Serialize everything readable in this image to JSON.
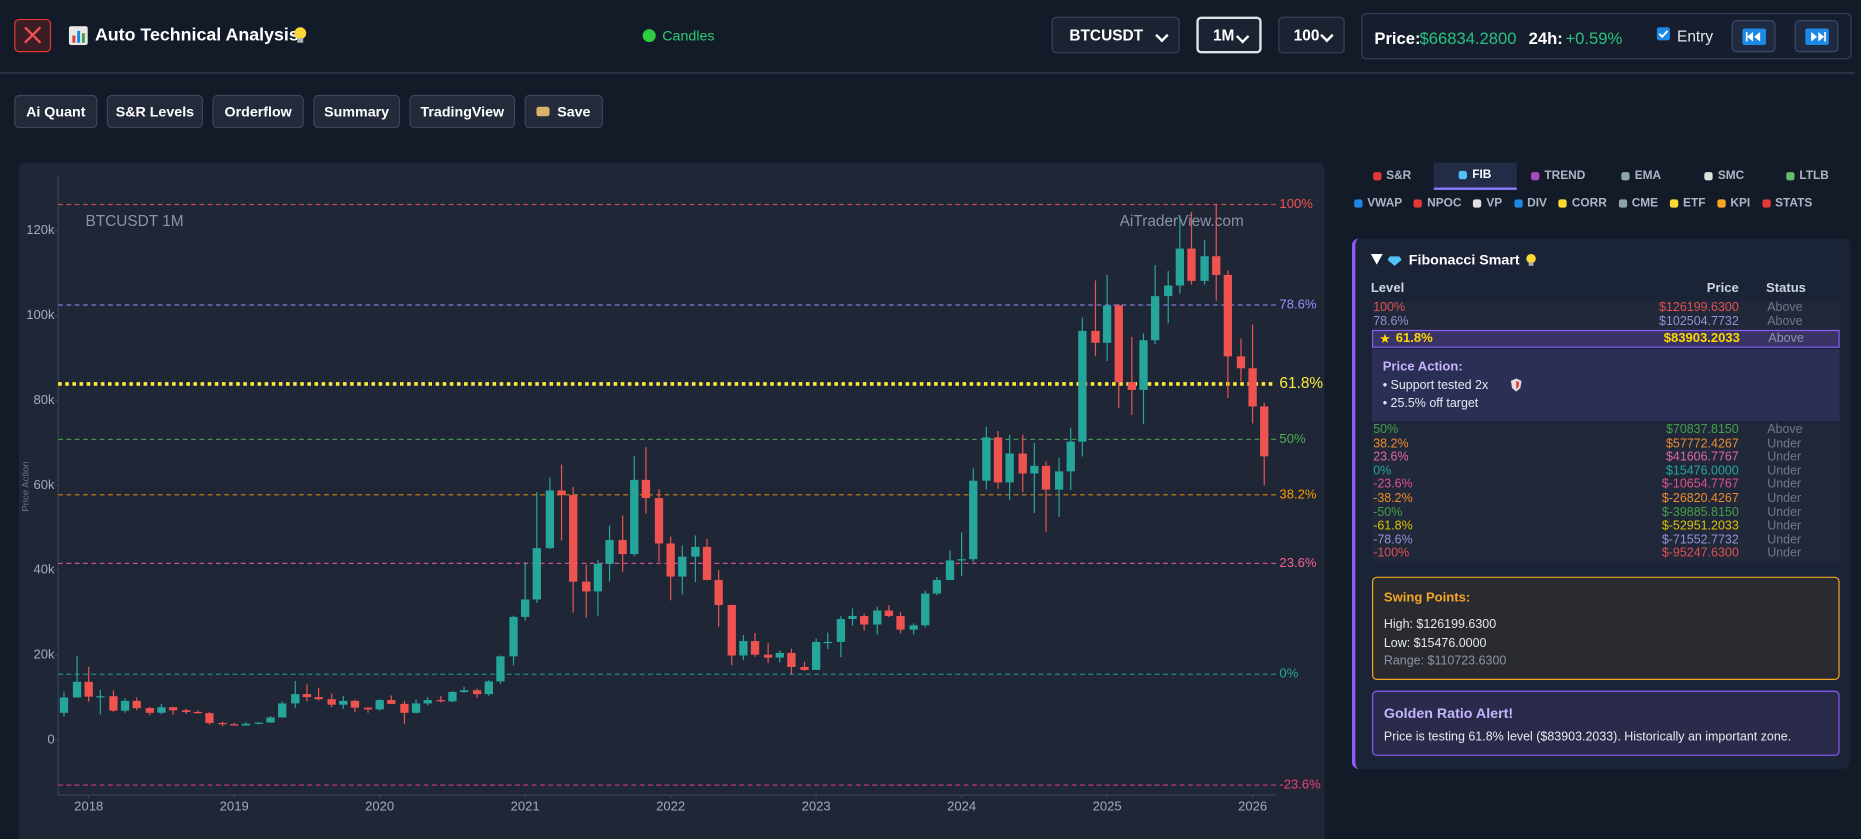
{
  "header": {
    "title": "Auto Technical Analysis",
    "status": "Candles",
    "symbol": "BTCUSDT",
    "interval": "1M",
    "limit": "100",
    "price_label": "Price:",
    "price": "$66834.2800",
    "change_label": "24h:",
    "change": "+0.59%",
    "entry": "Entry"
  },
  "toolbar": [
    "Ai Quant",
    "S&R Levels",
    "Orderflow",
    "Summary",
    "TradingView",
    "Save"
  ],
  "chart_data": {
    "type": "candlestick",
    "watermark_left": "BTCUSDT 1M",
    "watermark_right": "AiTraderView.com",
    "y_label": "Price Action",
    "up_color": "#26a69a",
    "down_color": "#ef5350",
    "xlim": [
      2017.79,
      2026.16
    ],
    "xticks": [
      2018,
      2019,
      2020,
      2021,
      2022,
      2023,
      2024,
      2025,
      2026
    ],
    "ylim": [
      -13000,
      133000
    ],
    "yticks": [
      {
        "value": 0,
        "label": "0"
      },
      {
        "value": 20000,
        "label": "20k"
      },
      {
        "value": 40000,
        "label": "40k"
      },
      {
        "value": 60000,
        "label": "60k"
      },
      {
        "value": 80000,
        "label": "80k"
      },
      {
        "value": 100000,
        "label": "100k"
      },
      {
        "value": 120000,
        "label": "120k"
      }
    ],
    "fib_levels": [
      {
        "label": "100%",
        "value": 126199.63,
        "color": "#ef5350",
        "line_width": 1
      },
      {
        "label": "78.6%",
        "value": 102504.7732,
        "color": "#9d8cff",
        "line_width": 1
      },
      {
        "label": "61.8%",
        "value": 83903.2033,
        "color": "#ffeb3b",
        "line_width": 3
      },
      {
        "label": "50%",
        "value": 70837.815,
        "color": "#4caf50",
        "line_width": 1
      },
      {
        "label": "38.2%",
        "value": 57772.4267,
        "color": "#ff9800",
        "line_width": 1
      },
      {
        "label": "23.6%",
        "value": 41606.7767,
        "color": "#f06292",
        "line_width": 1
      },
      {
        "label": "0%",
        "value": 15476.0,
        "color": "#26a69a",
        "line_width": 1
      },
      {
        "label": "-23.6%",
        "value": -10654.7767,
        "color": "#ec407a",
        "line_width": 1
      }
    ],
    "x": [
      2017.83,
      2017.92,
      2018,
      2018.08,
      2018.17,
      2018.25,
      2018.33,
      2018.42,
      2018.5,
      2018.58,
      2018.67,
      2018.75,
      2018.83,
      2018.92,
      2019,
      2019.08,
      2019.17,
      2019.25,
      2019.33,
      2019.42,
      2019.5,
      2019.58,
      2019.67,
      2019.75,
      2019.83,
      2019.92,
      2020,
      2020.08,
      2020.17,
      2020.25,
      2020.33,
      2020.42,
      2020.5,
      2020.58,
      2020.67,
      2020.75,
      2020.83,
      2020.92,
      2021,
      2021.08,
      2021.17,
      2021.25,
      2021.33,
      2021.42,
      2021.5,
      2021.58,
      2021.67,
      2021.75,
      2021.83,
      2021.92,
      2022,
      2022.08,
      2022.17,
      2022.25,
      2022.33,
      2022.42,
      2022.5,
      2022.58,
      2022.67,
      2022.75,
      2022.83,
      2022.92,
      2023,
      2023.08,
      2023.17,
      2023.25,
      2023.33,
      2023.42,
      2023.5,
      2023.58,
      2023.67,
      2023.75,
      2023.83,
      2023.92,
      2024,
      2024.08,
      2024.17,
      2024.25,
      2024.33,
      2024.42,
      2024.5,
      2024.58,
      2024.67,
      2024.75,
      2024.83,
      2024.92,
      2025,
      2025.08,
      2025.17,
      2025.25,
      2025.33,
      2025.42,
      2025.5,
      2025.58,
      2025.67,
      2025.75,
      2025.83,
      2025.92,
      2026,
      2026.08
    ],
    "open": [
      6400,
      10000,
      13700,
      10200,
      10300,
      6900,
      9200,
      7500,
      6400,
      7700,
      7000,
      6600,
      6300,
      4000,
      3700,
      3400,
      3800,
      4100,
      5300,
      8600,
      10800,
      10100,
      9600,
      8300,
      9200,
      7600,
      7200,
      9400,
      8500,
      6400,
      8600,
      9400,
      9100,
      11300,
      11700,
      10800,
      13800,
      19700,
      29000,
      33100,
      45200,
      58800,
      57700,
      37300,
      35000,
      41500,
      47100,
      43800,
      61300,
      57000,
      46300,
      38500,
      43200,
      45500,
      37700,
      31800,
      19900,
      23300,
      20100,
      19400,
      20500,
      17200,
      16500,
      23100,
      23100,
      28500,
      29200,
      27200,
      30500,
      29200,
      26000,
      27000,
      34500,
      37700,
      42300,
      42600,
      61100,
      71300,
      60700,
      67500,
      62800,
      64600,
      59000,
      63300,
      70300,
      96400,
      93600,
      102400,
      84300,
      82500,
      94200,
      104600,
      107100,
      115800,
      108200,
      114000,
      109600,
      90400,
      87600,
      78600
    ],
    "high": [
      11400,
      19800,
      17200,
      11800,
      11700,
      9800,
      10000,
      7800,
      8500,
      7800,
      7400,
      7000,
      6600,
      4300,
      4100,
      4200,
      4100,
      5600,
      9100,
      13900,
      13100,
      12300,
      10900,
      10400,
      9500,
      7700,
      9600,
      10500,
      9200,
      9500,
      10100,
      10400,
      11500,
      12500,
      12100,
      14100,
      19900,
      29300,
      41900,
      58400,
      61800,
      64900,
      59600,
      41300,
      42400,
      50500,
      52900,
      67000,
      69000,
      59100,
      47900,
      45800,
      48200,
      47400,
      40000,
      31900,
      24700,
      25200,
      22800,
      21100,
      21500,
      18400,
      23900,
      25300,
      29200,
      31000,
      29800,
      31400,
      31800,
      30200,
      27500,
      35200,
      38400,
      44700,
      48900,
      64000,
      73800,
      72800,
      71900,
      72000,
      70000,
      65600,
      66500,
      73600,
      99600,
      108300,
      109600,
      102800,
      95000,
      95800,
      111900,
      110500,
      123200,
      124500,
      117900,
      126199.63,
      110700,
      94600,
      97900,
      79500
    ],
    "low": [
      5500,
      10000,
      9000,
      6000,
      6600,
      6400,
      7000,
      5800,
      6100,
      5900,
      6100,
      6200,
      3600,
      3200,
      3400,
      3400,
      3700,
      4100,
      5300,
      7500,
      9100,
      9300,
      7700,
      7300,
      6500,
      6400,
      6900,
      8500,
      3800,
      6200,
      8100,
      8800,
      8900,
      11100,
      9900,
      10400,
      13200,
      17600,
      28100,
      32300,
      45000,
      47000,
      30000,
      28800,
      29300,
      37300,
      39600,
      43300,
      53300,
      42000,
      32900,
      34300,
      37200,
      37600,
      26700,
      17600,
      18800,
      19600,
      18100,
      18200,
      15476,
      16300,
      16500,
      21400,
      19500,
      26900,
      25800,
      24800,
      28900,
      25100,
      24900,
      26500,
      34100,
      37600,
      38600,
      41900,
      59000,
      59200,
      56600,
      58400,
      53500,
      49000,
      52600,
      58900,
      66800,
      90500,
      89300,
      78300,
      76600,
      74400,
      93300,
      98200,
      105200,
      107300,
      107300,
      103500,
      80600,
      84500,
      74600,
      60000
    ],
    "close": [
      10000,
      13700,
      10200,
      10300,
      6900,
      9200,
      7500,
      6400,
      7700,
      7000,
      6600,
      6300,
      4000,
      3700,
      3400,
      3800,
      4100,
      5300,
      8600,
      10800,
      10100,
      9600,
      8300,
      9200,
      7600,
      7200,
      9400,
      8500,
      6400,
      8600,
      9400,
      9100,
      11300,
      11700,
      10800,
      13800,
      19700,
      29000,
      33100,
      45200,
      58800,
      57700,
      37300,
      35000,
      41500,
      47100,
      43800,
      61300,
      57000,
      46300,
      38500,
      43200,
      45500,
      37700,
      31800,
      19900,
      23300,
      20100,
      19400,
      20500,
      17200,
      16500,
      23100,
      23100,
      28500,
      29200,
      27200,
      30500,
      29200,
      26000,
      27000,
      34500,
      37700,
      42300,
      42600,
      61100,
      71300,
      60700,
      67500,
      62800,
      64600,
      59000,
      63300,
      70300,
      96400,
      93600,
      102400,
      84300,
      82500,
      94200,
      104600,
      107100,
      115800,
      108200,
      114000,
      109600,
      90400,
      87600,
      78600,
      66834.28
    ]
  },
  "panel": {
    "tabs": [
      "S&R",
      "FIB",
      "TREND",
      "EMA",
      "SMC",
      "LTLB"
    ],
    "active_tab": 1,
    "indicators": [
      "VWAP",
      "NPOC",
      "VP",
      "DIV",
      "CORR",
      "CME",
      "ETF",
      "KPI",
      "STATS"
    ],
    "fib": {
      "title": "Fibonacci Smart",
      "columns": [
        "Level",
        "Price",
        "Status"
      ],
      "rows": [
        {
          "level": "100%",
          "price": "$126199.6300",
          "status": "Above",
          "color": "#e05252"
        },
        {
          "level": "78.6%",
          "price": "$102504.7732",
          "status": "Above",
          "color": "#9b8fd6"
        }
      ],
      "focus_row": {
        "level": "61.8%",
        "price": "$83903.2033",
        "status": "Above",
        "color": "#ffd600"
      },
      "price_action": {
        "title": "Price Action:",
        "lines": [
          "• Support tested 2x",
          "• 25.5% off target"
        ]
      },
      "more_rows": [
        {
          "level": "50%",
          "price": "$70837.8150",
          "status": "Above",
          "color": "#43a047"
        },
        {
          "level": "38.2%",
          "price": "$57772.4267",
          "status": "Under",
          "color": "#f08c2a"
        },
        {
          "level": "23.6%",
          "price": "$41606.7767",
          "status": "Under",
          "color": "#e06a9a"
        },
        {
          "level": "0%",
          "price": "$15476.0000",
          "status": "Under",
          "color": "#26a69a"
        },
        {
          "level": "-23.6%",
          "price": "$-10654.7767",
          "status": "Under",
          "color": "#e05288"
        },
        {
          "level": "-38.2%",
          "price": "$-26820.4267",
          "status": "Under",
          "color": "#f08c2a"
        },
        {
          "level": "-50%",
          "price": "$-39885.8150",
          "status": "Under",
          "color": "#43a047"
        },
        {
          "level": "-61.8%",
          "price": "$-52951.2033",
          "status": "Under",
          "color": "#e0c200"
        },
        {
          "level": "-78.6%",
          "price": "$-71552.7732",
          "status": "Under",
          "color": "#9b8fd6"
        },
        {
          "level": "-100%",
          "price": "$-95247.6300",
          "status": "Under",
          "color": "#e05252"
        }
      ],
      "swing": {
        "title": "Swing Points:",
        "high": "High: $126199.6300",
        "low": "Low: $15476.0000",
        "range": "Range: $110723.6300"
      },
      "alert": {
        "title": "Golden Ratio Alert!",
        "text": "Price is testing 61.8% level ($83903.2033). Historically an important zone."
      }
    }
  }
}
